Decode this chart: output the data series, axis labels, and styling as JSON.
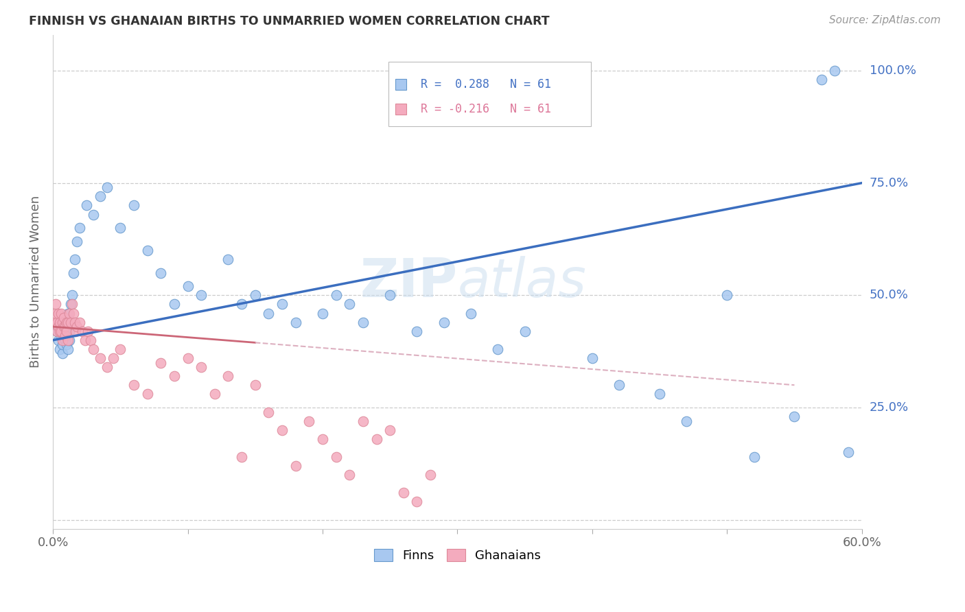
{
  "title": "FINNISH VS GHANAIAN BIRTHS TO UNMARRIED WOMEN CORRELATION CHART",
  "source": "Source: ZipAtlas.com",
  "ylabel": "Births to Unmarried Women",
  "xlim": [
    0.0,
    0.6
  ],
  "ylim": [
    -0.02,
    1.08
  ],
  "yticks": [
    0.0,
    0.25,
    0.5,
    0.75,
    1.0
  ],
  "ytick_labels": [
    "",
    "25.0%",
    "50.0%",
    "75.0%",
    "100.0%"
  ],
  "xticks": [
    0.0,
    0.1,
    0.2,
    0.3,
    0.4,
    0.5,
    0.6
  ],
  "xtick_labels": [
    "0.0%",
    "",
    "",
    "",
    "",
    "",
    "60.0%"
  ],
  "finn_color": "#A8C8F0",
  "ghana_color": "#F4ABBE",
  "finn_edge": "#6699CC",
  "ghana_edge": "#DD8899",
  "trend_blue": "#3B6EBF",
  "trend_pink_solid": "#CC6677",
  "trend_pink_dash": "#DDB0C0",
  "background_color": "#FFFFFF",
  "watermark": "ZIPatlas",
  "finn_x": [
    0.003,
    0.004,
    0.005,
    0.005,
    0.006,
    0.006,
    0.007,
    0.007,
    0.008,
    0.008,
    0.009,
    0.009,
    0.01,
    0.01,
    0.011,
    0.011,
    0.012,
    0.012,
    0.013,
    0.014,
    0.015,
    0.016,
    0.018,
    0.02,
    0.025,
    0.03,
    0.035,
    0.04,
    0.05,
    0.06,
    0.07,
    0.08,
    0.09,
    0.1,
    0.11,
    0.13,
    0.14,
    0.15,
    0.16,
    0.17,
    0.18,
    0.2,
    0.21,
    0.22,
    0.23,
    0.25,
    0.27,
    0.29,
    0.31,
    0.33,
    0.35,
    0.4,
    0.42,
    0.45,
    0.47,
    0.5,
    0.52,
    0.55,
    0.57,
    0.58,
    0.59
  ],
  "finn_y": [
    0.42,
    0.4,
    0.38,
    0.43,
    0.41,
    0.44,
    0.37,
    0.39,
    0.41,
    0.43,
    0.42,
    0.4,
    0.44,
    0.39,
    0.46,
    0.38,
    0.4,
    0.42,
    0.48,
    0.5,
    0.55,
    0.58,
    0.62,
    0.65,
    0.7,
    0.68,
    0.72,
    0.74,
    0.65,
    0.7,
    0.6,
    0.55,
    0.48,
    0.52,
    0.5,
    0.58,
    0.48,
    0.5,
    0.46,
    0.48,
    0.44,
    0.46,
    0.5,
    0.48,
    0.44,
    0.5,
    0.42,
    0.44,
    0.46,
    0.38,
    0.42,
    0.36,
    0.3,
    0.28,
    0.22,
    0.5,
    0.14,
    0.23,
    0.98,
    1.0,
    0.15
  ],
  "ghana_x": [
    0.001,
    0.002,
    0.002,
    0.003,
    0.003,
    0.004,
    0.004,
    0.005,
    0.005,
    0.006,
    0.006,
    0.007,
    0.007,
    0.008,
    0.008,
    0.009,
    0.009,
    0.01,
    0.01,
    0.011,
    0.011,
    0.012,
    0.013,
    0.014,
    0.015,
    0.016,
    0.017,
    0.018,
    0.02,
    0.022,
    0.024,
    0.026,
    0.028,
    0.03,
    0.035,
    0.04,
    0.045,
    0.05,
    0.06,
    0.07,
    0.08,
    0.09,
    0.1,
    0.11,
    0.12,
    0.13,
    0.14,
    0.15,
    0.16,
    0.17,
    0.18,
    0.19,
    0.2,
    0.21,
    0.22,
    0.23,
    0.24,
    0.25,
    0.26,
    0.27,
    0.28
  ],
  "ghana_y": [
    0.44,
    0.46,
    0.48,
    0.42,
    0.44,
    0.46,
    0.43,
    0.42,
    0.44,
    0.46,
    0.42,
    0.44,
    0.4,
    0.43,
    0.45,
    0.41,
    0.43,
    0.44,
    0.42,
    0.44,
    0.4,
    0.46,
    0.44,
    0.48,
    0.46,
    0.44,
    0.42,
    0.43,
    0.44,
    0.42,
    0.4,
    0.42,
    0.4,
    0.38,
    0.36,
    0.34,
    0.36,
    0.38,
    0.3,
    0.28,
    0.35,
    0.32,
    0.36,
    0.34,
    0.28,
    0.32,
    0.14,
    0.3,
    0.24,
    0.2,
    0.12,
    0.22,
    0.18,
    0.14,
    0.1,
    0.22,
    0.18,
    0.2,
    0.06,
    0.04,
    0.1
  ]
}
